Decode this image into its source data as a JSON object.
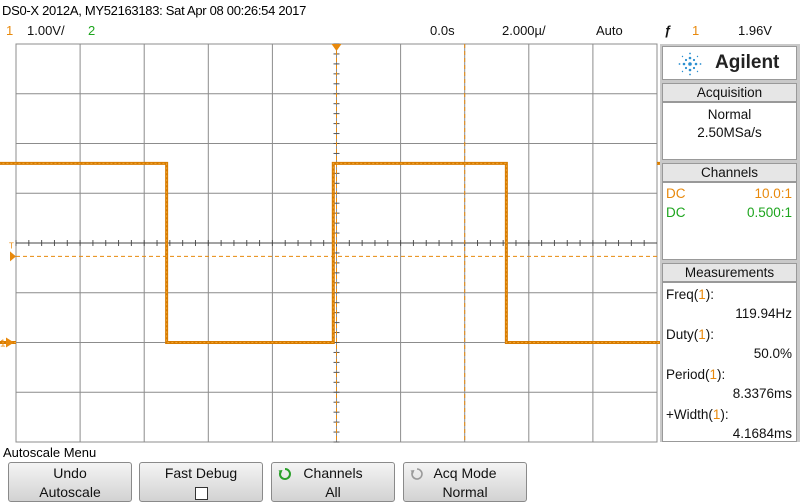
{
  "title_line": "DS0-X 2012A, MY52163183: Sat Apr 08 00:26:54 2017",
  "status": {
    "ch1_num": "1",
    "ch1_scale": "1.00V/",
    "ch2_num": "2",
    "time_delay": "0.0s",
    "time_scale": "2.000µ/",
    "trigger_mode": "Auto",
    "trigger_edge_symbol": "ƒ",
    "trigger_source": "1",
    "trigger_level": "1.96V"
  },
  "colors": {
    "ch1": "#e8890c",
    "ch2": "#1ea51e",
    "grid": "#8c8c8c",
    "trace": "#d77b00"
  },
  "waveform": {
    "type": "square",
    "low_div": -2,
    "high_div": 1.6,
    "rise_div": [
      -5.3,
      -0.05,
      5.2
    ],
    "fall_div": [
      -2.65,
      2.65
    ],
    "trigger_level_div": -0.27,
    "marker_label": "1"
  },
  "brand": {
    "name": "Agilent",
    "icon": "agilent-spark-icon"
  },
  "acquisition": {
    "title": "Acquisition",
    "mode": "Normal",
    "rate": "2.50MSa/s"
  },
  "channels": {
    "title": "Channels",
    "rows": [
      {
        "coupling": "DC",
        "ratio": "10.0:1",
        "color": "#e8890c"
      },
      {
        "coupling": "DC",
        "ratio": "0.500:1",
        "color": "#1ea51e"
      }
    ]
  },
  "measurements": {
    "title": "Measurements",
    "items": [
      {
        "name": "Freq(",
        "ch": "1",
        "close": "):",
        "value": "119.94Hz"
      },
      {
        "name": "Duty(",
        "ch": "1",
        "close": "):",
        "value": "50.0%"
      },
      {
        "name": "Period(",
        "ch": "1",
        "close": "):",
        "value": "8.3376ms"
      },
      {
        "name": "+Width(",
        "ch": "1",
        "close": "):",
        "value": "4.1684ms"
      }
    ]
  },
  "menu": {
    "title": "Autoscale Menu",
    "keys": [
      {
        "line1": "Undo",
        "line2": "Autoscale"
      },
      {
        "line1": "Fast Debug",
        "line2": ""
      },
      {
        "line1": "Channels",
        "line2": "All",
        "icon": "rotate-knob-icon"
      },
      {
        "line1": "Acq Mode",
        "line2": "Normal",
        "icon": "rotate-knob-icon"
      }
    ]
  }
}
